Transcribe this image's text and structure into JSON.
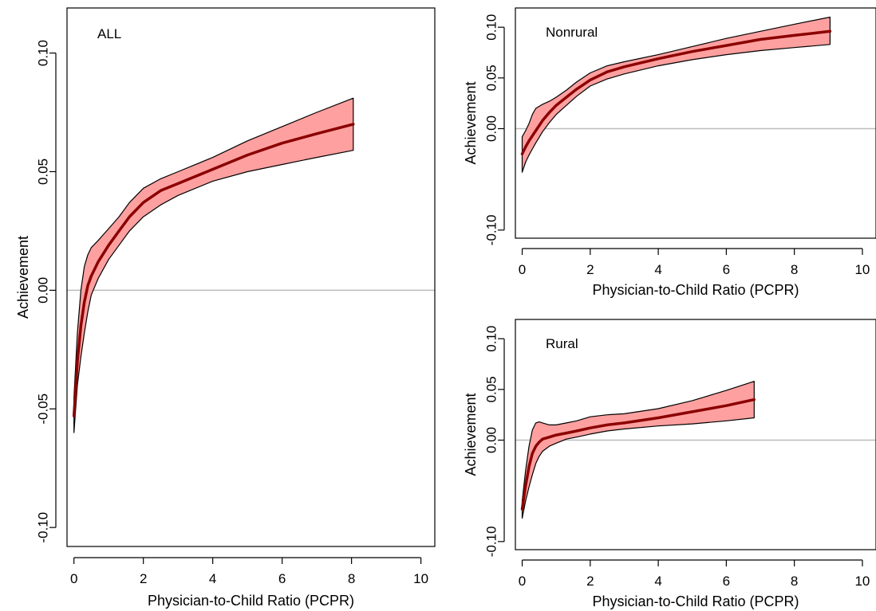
{
  "chart_data": [
    {
      "type": "line",
      "title": "ALL",
      "xlabel": "Physician-to-Child Ratio (PCPR)",
      "ylabel": "Achievement",
      "xlim": [
        -0.2,
        10.4
      ],
      "ylim": [
        -0.108,
        0.119
      ],
      "xticks": [
        0,
        2,
        4,
        6,
        8,
        10
      ],
      "xtick_labels": [
        "0",
        "2",
        "4",
        "6",
        "8",
        "10"
      ],
      "yticks": [
        -0.1,
        -0.05,
        0.0,
        0.05,
        0.1
      ],
      "ytick_labels": [
        "-0.10",
        "-0.05",
        "0.00",
        "0.05",
        "0.10"
      ],
      "reference_line_y": 0,
      "grid": false,
      "colors": {
        "line": "#8b0000",
        "band": "#ffa0a0",
        "reference": "#bbbbbb"
      },
      "x": [
        0,
        0.1,
        0.2,
        0.3,
        0.4,
        0.5,
        0.7,
        1.0,
        1.3,
        1.6,
        2.0,
        2.5,
        3.0,
        4.0,
        5.0,
        6.0,
        7.0,
        8.05
      ],
      "y": [
        -0.053,
        -0.03,
        -0.015,
        -0.005,
        0.002,
        0.006,
        0.012,
        0.019,
        0.025,
        0.031,
        0.037,
        0.042,
        0.045,
        0.051,
        0.057,
        0.062,
        0.066,
        0.07
      ],
      "lower": [
        -0.06,
        -0.04,
        -0.028,
        -0.018,
        -0.009,
        -0.002,
        0.005,
        0.013,
        0.019,
        0.025,
        0.031,
        0.036,
        0.04,
        0.046,
        0.05,
        0.053,
        0.056,
        0.059
      ],
      "upper": [
        -0.045,
        -0.018,
        0.0,
        0.01,
        0.015,
        0.018,
        0.021,
        0.026,
        0.031,
        0.037,
        0.043,
        0.047,
        0.05,
        0.056,
        0.063,
        0.069,
        0.075,
        0.081
      ]
    },
    {
      "type": "line",
      "title": "Nonrural",
      "xlabel": "Physician-to-Child Ratio (PCPR)",
      "ylabel": "Achievement",
      "xlim": [
        -0.2,
        10.4
      ],
      "ylim": [
        -0.108,
        0.119
      ],
      "xticks": [
        0,
        2,
        4,
        6,
        8,
        10
      ],
      "xtick_labels": [
        "0",
        "2",
        "4",
        "6",
        "8",
        "10"
      ],
      "yticks": [
        -0.1,
        0.0,
        0.05,
        0.1
      ],
      "ytick_labels": [
        "-0.10",
        "0.00",
        "0.05",
        "0.10"
      ],
      "reference_line_y": 0,
      "grid": false,
      "colors": {
        "line": "#8b0000",
        "band": "#ffa0a0",
        "reference": "#bbbbbb"
      },
      "x": [
        0,
        0.1,
        0.2,
        0.3,
        0.4,
        0.6,
        0.8,
        1.0,
        1.3,
        1.6,
        2.0,
        2.5,
        3.0,
        4.0,
        5.0,
        6.0,
        7.0,
        8.0,
        9.05
      ],
      "y": [
        -0.025,
        -0.018,
        -0.012,
        -0.007,
        -0.002,
        0.008,
        0.016,
        0.023,
        0.031,
        0.039,
        0.048,
        0.056,
        0.061,
        0.069,
        0.076,
        0.082,
        0.088,
        0.092,
        0.096
      ],
      "lower": [
        -0.043,
        -0.033,
        -0.026,
        -0.02,
        -0.014,
        -0.003,
        0.006,
        0.014,
        0.023,
        0.032,
        0.042,
        0.049,
        0.054,
        0.062,
        0.068,
        0.073,
        0.077,
        0.08,
        0.083
      ],
      "upper": [
        -0.008,
        -0.002,
        0.005,
        0.014,
        0.02,
        0.024,
        0.027,
        0.031,
        0.038,
        0.046,
        0.055,
        0.062,
        0.066,
        0.073,
        0.081,
        0.089,
        0.096,
        0.103,
        0.11
      ]
    },
    {
      "type": "line",
      "title": "Rural",
      "xlabel": "Physician-to-Child Ratio (PCPR)",
      "ylabel": "Achievement",
      "xlim": [
        -0.2,
        10.4
      ],
      "ylim": [
        -0.108,
        0.119
      ],
      "xticks": [
        0,
        2,
        4,
        6,
        8,
        10
      ],
      "xtick_labels": [
        "0",
        "2",
        "4",
        "6",
        "8",
        "10"
      ],
      "yticks": [
        -0.1,
        0.0,
        0.05,
        0.1
      ],
      "ytick_labels": [
        "-0.10",
        "0.00",
        "0.05",
        "0.10"
      ],
      "reference_line_y": 0,
      "grid": false,
      "colors": {
        "line": "#8b0000",
        "band": "#ffa0a0",
        "reference": "#bbbbbb"
      },
      "x": [
        0,
        0.1,
        0.2,
        0.3,
        0.4,
        0.5,
        0.6,
        0.8,
        1.0,
        1.3,
        1.6,
        2.0,
        2.5,
        3.0,
        4.0,
        5.0,
        6.0,
        6.82
      ],
      "y": [
        -0.068,
        -0.045,
        -0.026,
        -0.013,
        -0.006,
        -0.002,
        0.001,
        0.003,
        0.005,
        0.007,
        0.009,
        0.012,
        0.015,
        0.017,
        0.022,
        0.028,
        0.034,
        0.04
      ],
      "lower": [
        -0.077,
        -0.06,
        -0.046,
        -0.034,
        -0.023,
        -0.016,
        -0.011,
        -0.006,
        -0.003,
        0.001,
        0.003,
        0.006,
        0.009,
        0.011,
        0.014,
        0.016,
        0.019,
        0.022
      ],
      "upper": [
        -0.06,
        -0.03,
        -0.006,
        0.01,
        0.017,
        0.018,
        0.017,
        0.015,
        0.015,
        0.017,
        0.019,
        0.023,
        0.025,
        0.026,
        0.031,
        0.039,
        0.049,
        0.058
      ]
    }
  ]
}
